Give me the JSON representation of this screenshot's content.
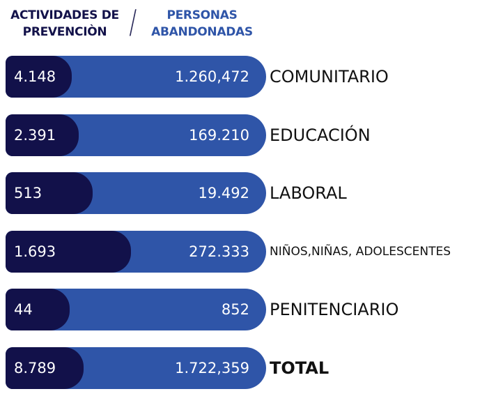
{
  "header": {
    "left": [
      "ACTIVIDADES DE",
      "PREVENCIÒN"
    ],
    "separator": "/",
    "right": [
      "PERSONAS",
      "ABANDONADAS"
    ]
  },
  "rows": [
    {
      "activities": "4.148",
      "people": "1.260,472",
      "label": "COMUNITARIO"
    },
    {
      "activities": "2.391",
      "people": "169.210",
      "label": "EDUCACIÓN"
    },
    {
      "activities": "513",
      "people": "19.492",
      "label": "LABORAL"
    },
    {
      "activities": "1.693",
      "people": "272.333",
      "label": "NIÑOS,NIÑAS, ADOLESCENTES"
    },
    {
      "activities": "44",
      "people": "852",
      "label": "PENITENCIARIO"
    },
    {
      "activities": "8.789",
      "people": "1.722,359",
      "label": "TOTAL"
    }
  ]
}
